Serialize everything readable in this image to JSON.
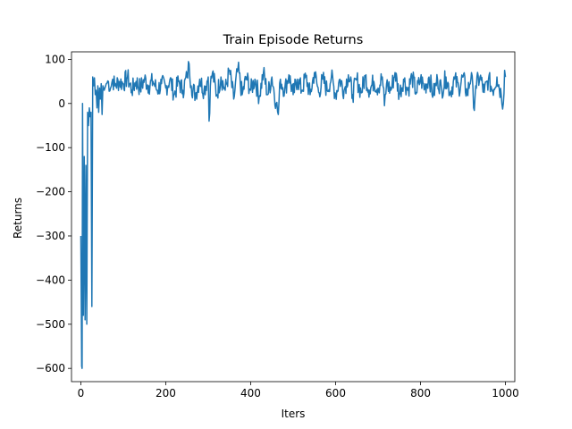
{
  "chart_data": {
    "type": "line",
    "title": "Train Episode Returns",
    "xlabel": "Iters",
    "ylabel": "Returns",
    "xlim": [
      -22,
      1022
    ],
    "ylim": [
      -630,
      117
    ],
    "xticks": [
      0,
      200,
      400,
      600,
      800,
      1000
    ],
    "yticks": [
      -600,
      -500,
      -400,
      -300,
      -200,
      -100,
      0,
      100
    ],
    "grid": false,
    "legend": "none",
    "colors": {
      "line": "#1f77b4",
      "axes": "#000000",
      "background": "#ffffff"
    },
    "series": [
      {
        "values_note_keypoints": [
          [
            0,
            -300
          ],
          [
            2,
            -595
          ],
          [
            3,
            -600
          ],
          [
            4,
            0
          ],
          [
            6,
            -480
          ],
          [
            8,
            -120
          ],
          [
            10,
            -490
          ],
          [
            12,
            -140
          ],
          [
            14,
            -500
          ],
          [
            16,
            -20
          ],
          [
            18,
            -50
          ],
          [
            20,
            -10
          ],
          [
            22,
            -30
          ],
          [
            24,
            -20
          ],
          [
            26,
            -460
          ],
          [
            28,
            60
          ],
          [
            30,
            40
          ],
          [
            32,
            58
          ],
          [
            34,
            20
          ],
          [
            36,
            30
          ],
          [
            38,
            -10
          ],
          [
            40,
            40
          ],
          [
            42,
            -20
          ],
          [
            44,
            35
          ],
          [
            46,
            10
          ],
          [
            48,
            45
          ],
          [
            50,
            -25
          ],
          [
            52,
            40
          ],
          [
            55,
            30
          ],
          [
            60,
            45
          ],
          [
            65,
            50
          ],
          [
            70,
            35
          ],
          [
            75,
            55
          ],
          [
            80,
            40
          ],
          [
            90,
            50
          ],
          [
            100,
            45
          ],
          [
            110,
            60
          ],
          [
            120,
            30
          ],
          [
            130,
            50
          ],
          [
            140,
            35
          ],
          [
            150,
            55
          ],
          [
            160,
            40
          ],
          [
            170,
            50
          ],
          [
            180,
            30
          ],
          [
            190,
            45
          ],
          [
            200,
            35
          ],
          [
            210,
            55
          ],
          [
            220,
            20
          ],
          [
            230,
            50
          ],
          [
            240,
            30
          ],
          [
            250,
            60
          ],
          [
            255,
            90
          ],
          [
            260,
            40
          ],
          [
            270,
            20
          ],
          [
            280,
            55
          ],
          [
            290,
            30
          ],
          [
            300,
            60
          ],
          [
            302,
            -40
          ],
          [
            305,
            40
          ],
          [
            310,
            70
          ],
          [
            320,
            20
          ],
          [
            330,
            60
          ],
          [
            340,
            30
          ],
          [
            350,
            75
          ],
          [
            360,
            10
          ],
          [
            370,
            80
          ],
          [
            380,
            20
          ],
          [
            390,
            60
          ],
          [
            400,
            30
          ],
          [
            410,
            55
          ],
          [
            420,
            15
          ],
          [
            430,
            70
          ],
          [
            440,
            20
          ],
          [
            450,
            60
          ],
          [
            460,
            0
          ],
          [
            465,
            -25
          ],
          [
            470,
            55
          ],
          [
            480,
            30
          ],
          [
            490,
            65
          ],
          [
            500,
            20
          ],
          [
            510,
            55
          ],
          [
            520,
            30
          ],
          [
            530,
            60
          ],
          [
            540,
            20
          ],
          [
            550,
            70
          ],
          [
            560,
            25
          ],
          [
            570,
            55
          ],
          [
            580,
            30
          ],
          [
            590,
            60
          ],
          [
            600,
            20
          ],
          [
            610,
            55
          ],
          [
            620,
            30
          ],
          [
            630,
            65
          ],
          [
            640,
            20
          ],
          [
            650,
            55
          ],
          [
            660,
            25
          ],
          [
            670,
            60
          ],
          [
            680,
            30
          ],
          [
            690,
            50
          ],
          [
            700,
            35
          ],
          [
            710,
            60
          ],
          [
            715,
            -5
          ],
          [
            720,
            45
          ],
          [
            730,
            30
          ],
          [
            740,
            70
          ],
          [
            750,
            20
          ],
          [
            760,
            55
          ],
          [
            770,
            30
          ],
          [
            780,
            60
          ],
          [
            790,
            25
          ],
          [
            800,
            55
          ],
          [
            810,
            35
          ],
          [
            820,
            60
          ],
          [
            830,
            20
          ],
          [
            840,
            55
          ],
          [
            850,
            30
          ],
          [
            860,
            60
          ],
          [
            870,
            25
          ],
          [
            880,
            55
          ],
          [
            890,
            35
          ],
          [
            900,
            60
          ],
          [
            910,
            20
          ],
          [
            920,
            70
          ],
          [
            925,
            -10
          ],
          [
            930,
            40
          ],
          [
            940,
            60
          ],
          [
            950,
            25
          ],
          [
            960,
            55
          ],
          [
            970,
            30
          ],
          [
            980,
            60
          ],
          [
            990,
            20
          ],
          [
            995,
            0
          ],
          [
            998,
            75
          ],
          [
            1000,
            60
          ]
        ]
      }
    ]
  }
}
